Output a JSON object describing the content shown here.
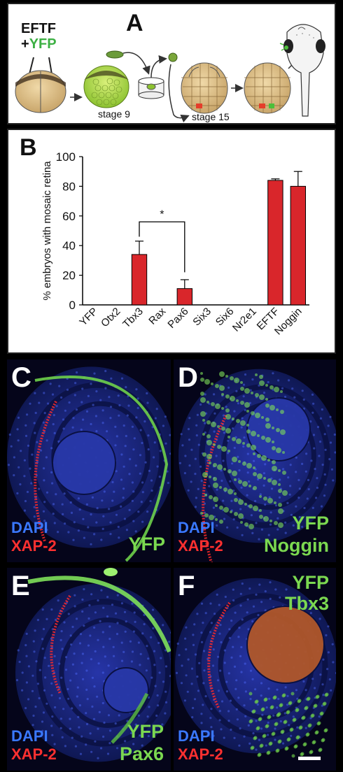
{
  "panelA": {
    "letter": "A",
    "inject_line1": "EFTF",
    "inject_plus": "+",
    "inject_yfp": "YFP",
    "stage9": "stage 9",
    "stage15": "stage 15"
  },
  "panelB": {
    "letter": "B",
    "significance": "*"
  },
  "chart_data": {
    "type": "bar",
    "ylabel": "% embryos with mosaic retina",
    "ylim": [
      0,
      100
    ],
    "yticks": [
      0,
      20,
      40,
      60,
      80,
      100
    ],
    "categories": [
      "YFP",
      "Otx2",
      "Tbx3",
      "Rax",
      "Pax6",
      "Six3",
      "Six6",
      "Nr2e1",
      "EFTF",
      "Noggin"
    ],
    "values": [
      0,
      0,
      34,
      0,
      11,
      0,
      0,
      0,
      84,
      80
    ],
    "errors": [
      0,
      0,
      9,
      0,
      6,
      0,
      0,
      0,
      1,
      10
    ],
    "bar_color": "#d9262b",
    "significance_pair": [
      "Tbx3",
      "Pax6"
    ]
  },
  "panels": [
    {
      "letter": "C",
      "dapi": "DAPI",
      "xap": "XAP-2",
      "yfp": [
        "YFP"
      ]
    },
    {
      "letter": "D",
      "dapi": "DAPI",
      "xap": "XAP-2",
      "yfp": [
        "YFP",
        "Noggin"
      ]
    },
    {
      "letter": "E",
      "dapi": "DAPI",
      "xap": "XAP-2",
      "yfp": [
        "YFP",
        "Pax6"
      ]
    },
    {
      "letter": "F",
      "dapi": "DAPI",
      "xap": "XAP-2",
      "yfp": [
        "YFP",
        "Tbx3"
      ]
    }
  ]
}
